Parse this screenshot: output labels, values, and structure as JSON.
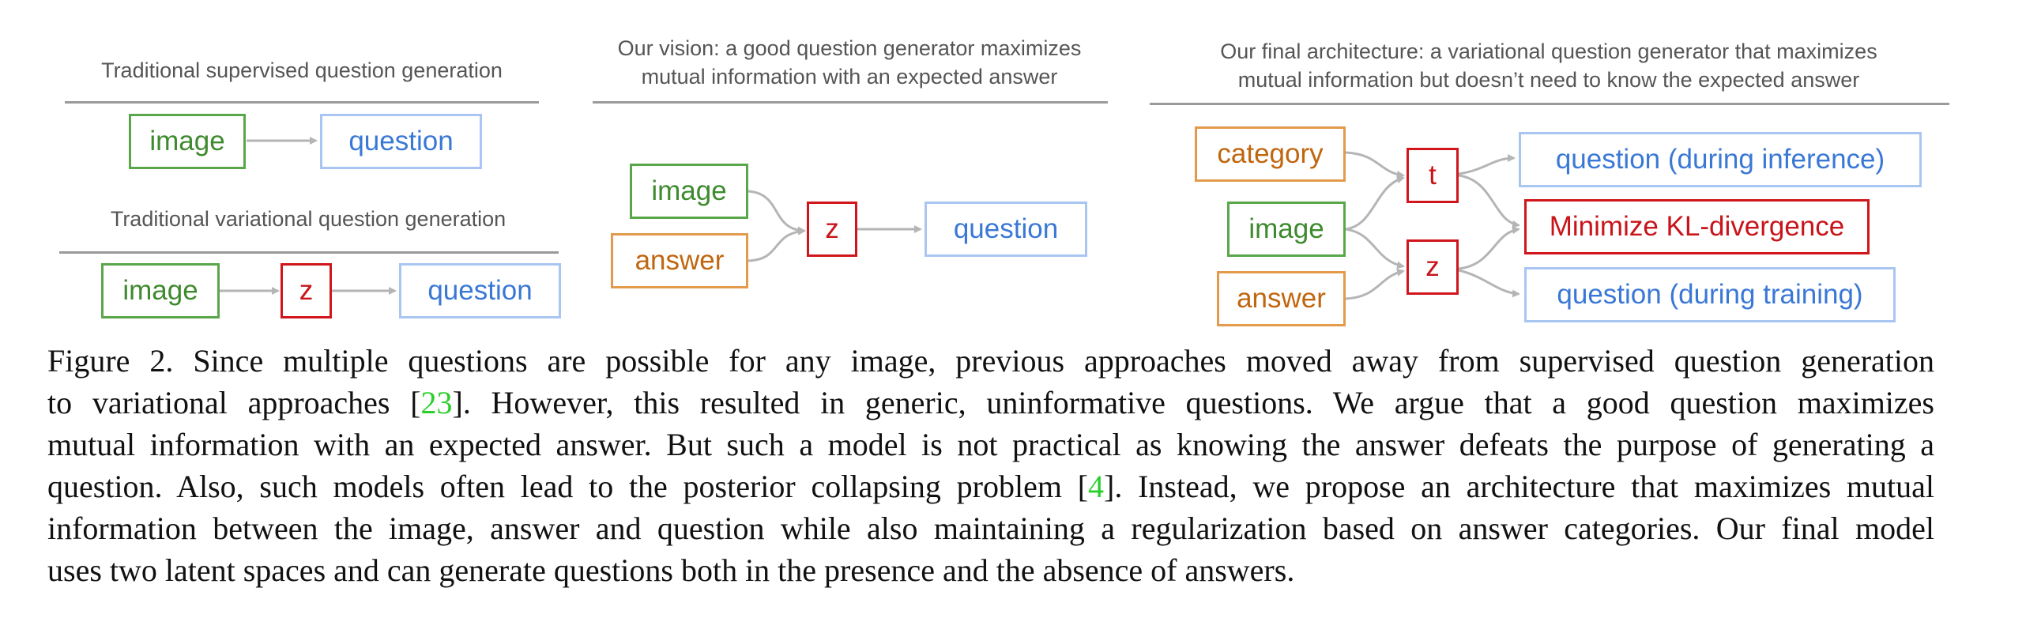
{
  "panels": {
    "trad_supervised": {
      "title": "Traditional supervised question generation",
      "image": "image",
      "question": "question"
    },
    "trad_variational": {
      "title": "Traditional variational question generation",
      "image": "image",
      "z": "z",
      "question": "question"
    },
    "vision": {
      "title_line1": "Our vision: a good question generator maximizes",
      "title_line2": "mutual information with an expected answer",
      "image": "image",
      "answer": "answer",
      "z": "z",
      "question": "question"
    },
    "final": {
      "title_line1": "Our final architecture: a variational question generator that maximizes",
      "title_line2": "mutual information but doesn’t need to know the expected answer",
      "category": "category",
      "image": "image",
      "answer": "answer",
      "t": "t",
      "z": "z",
      "q_inference": "question (during inference)",
      "kl": "Minimize KL-divergence",
      "q_training": "question (during training)"
    }
  },
  "caption": {
    "l1": "Figure 2. Since multiple questions are possible for any image, previous approaches moved away from supervised question generation",
    "l2a": "to variational approaches [",
    "l2cite": "23",
    "l2b": "].  However, this resulted in generic, uninformative questions.  We argue that a good question maximizes",
    "l3": "mutual information with an expected answer. But such a model is not practical as knowing the answer defeats the purpose of generating a",
    "l4a": "question. Also, such models often lead to the posterior collapsing problem [",
    "l4cite": "4",
    "l4b": "]. Instead, we propose an architecture that maximizes mutual",
    "l5": "information between the image, answer and question while also maintaining a regularization based on answer categories. Our final model",
    "l6": "uses two latent spaces and can generate questions both in the presence and the absence of answers."
  },
  "colors": {
    "green": "#5aa64a",
    "blue": "#a9c6f3",
    "orange": "#e39a4b",
    "red": "#d0161b",
    "arrow": "#b5b5b5",
    "citation": "#2bcf2b"
  }
}
